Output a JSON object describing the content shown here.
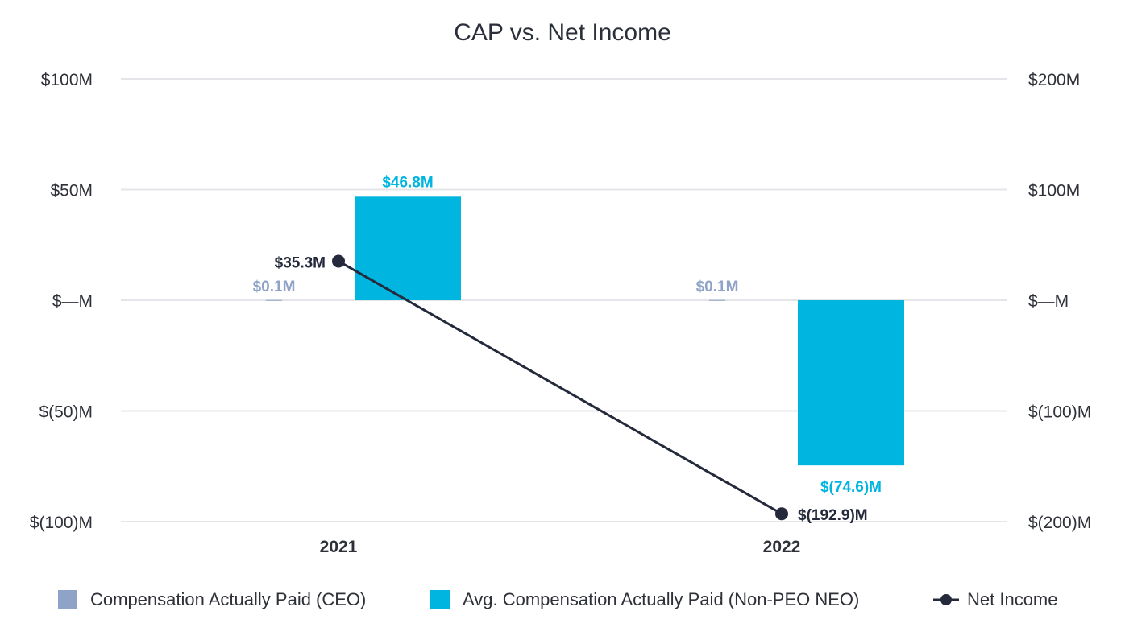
{
  "chart_data": {
    "type": "bar",
    "title": "CAP vs. Net Income",
    "categories": [
      "2021",
      "2022"
    ],
    "ylim": [
      -100,
      100
    ],
    "y2lim": [
      -200,
      200
    ],
    "y_ticks": [
      "$100M",
      "$50M",
      "$—M",
      "$(50)M",
      "$(100)M"
    ],
    "y2_ticks": [
      "$200M",
      "$100M",
      "$—M",
      "$(100)M",
      "$(200)M"
    ],
    "series": [
      {
        "name": "Compensation Actually Paid (CEO)",
        "type": "bar",
        "axis": "left",
        "color": "#8fa3c8",
        "values": [
          0.1,
          0.1
        ],
        "labels": [
          "$0.1M",
          "$0.1M"
        ]
      },
      {
        "name": "Avg. Compensation Actually Paid (Non-PEO NEO)",
        "type": "bar",
        "axis": "left",
        "color": "#00b5df",
        "values": [
          46.8,
          -74.6
        ],
        "labels": [
          "$46.8M",
          "$(74.6)M"
        ]
      },
      {
        "name": "Net Income",
        "type": "line",
        "axis": "right",
        "color": "#242a3b",
        "values": [
          35.3,
          -192.9
        ],
        "labels": [
          "$35.3M",
          "$(192.9)M"
        ]
      }
    ],
    "legend_position": "bottom",
    "grid": true
  }
}
